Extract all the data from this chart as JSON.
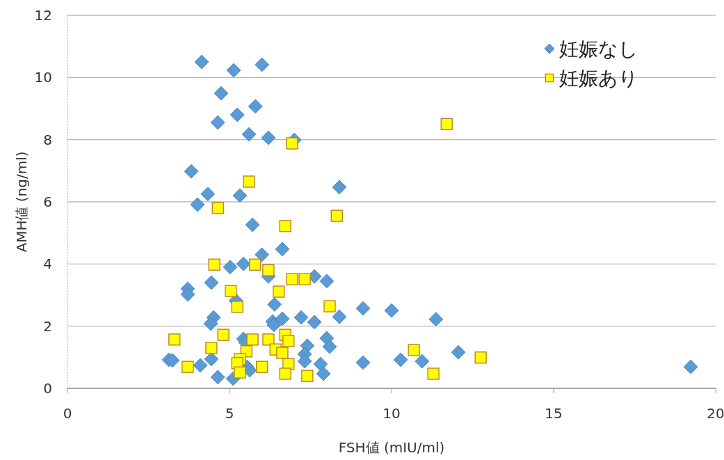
{
  "chart_data": {
    "type": "scatter",
    "xlabel": "FSH値 (mIU/ml)",
    "ylabel": "AMH値 (ng/ml)",
    "xlim": [
      0,
      20
    ],
    "ylim": [
      0,
      12
    ],
    "xticks": [
      0,
      5,
      10,
      15,
      20
    ],
    "yticks": [
      0,
      2,
      4,
      6,
      8,
      10,
      12
    ],
    "grid": "y",
    "legend": "top right",
    "series": [
      {
        "name": "妊娠なし",
        "color": "#5b9bd5",
        "marker": "diamond",
        "x": [
          4.14,
          5.13,
          6.0,
          4.74,
          5.8,
          5.24,
          4.64,
          5.6,
          6.2,
          7.0,
          3.82,
          4.33,
          5.32,
          4.01,
          8.39,
          5.71,
          6.0,
          6.63,
          5.43,
          5.02,
          6.2,
          7.62,
          8.0,
          3.71,
          3.71,
          4.44,
          5.2,
          6.39,
          9.12,
          10.0,
          4.51,
          4.42,
          6.33,
          6.37,
          6.63,
          7.21,
          7.62,
          8.39,
          11.37,
          5.43,
          5.49,
          8.0,
          8.09,
          7.4,
          7.32,
          7.32,
          7.81,
          7.9,
          3.13,
          3.24,
          4.1,
          4.44,
          4.64,
          5.11,
          5.54,
          5.62,
          9.12,
          10.28,
          10.94,
          12.06,
          19.23
        ],
        "values": [
          10.5,
          10.23,
          10.41,
          9.49,
          9.07,
          8.8,
          8.55,
          8.17,
          8.06,
          7.99,
          6.98,
          6.25,
          6.2,
          5.91,
          6.47,
          5.26,
          4.3,
          4.48,
          4.0,
          3.9,
          3.6,
          3.6,
          3.45,
          3.2,
          3.02,
          3.4,
          2.82,
          2.7,
          2.57,
          2.5,
          2.28,
          2.08,
          2.15,
          2.04,
          2.24,
          2.28,
          2.13,
          2.3,
          2.22,
          1.59,
          1.48,
          1.61,
          1.34,
          1.37,
          1.1,
          0.87,
          0.78,
          0.47,
          0.92,
          0.9,
          0.74,
          0.94,
          0.36,
          0.31,
          0.69,
          0.58,
          0.83,
          0.92,
          0.87,
          1.16,
          0.69
        ]
      },
      {
        "name": "妊娠あり",
        "color": "#ffff00",
        "marker": "square",
        "x": [
          11.7,
          6.93,
          8.31,
          5.6,
          4.64,
          6.72,
          4.53,
          5.79,
          6.2,
          6.93,
          7.32,
          5.04,
          6.52,
          5.24,
          8.09,
          3.3,
          4.81,
          5.71,
          6.2,
          6.72,
          6.82,
          4.44,
          5.52,
          6.42,
          6.63,
          10.69,
          12.75,
          5.32,
          5.24,
          5.32,
          6.0,
          6.82,
          3.71,
          6.72,
          7.4,
          11.29
        ],
        "values": [
          8.5,
          7.88,
          5.55,
          6.65,
          5.8,
          5.22,
          3.98,
          3.98,
          3.8,
          3.51,
          3.51,
          3.13,
          3.11,
          2.62,
          2.64,
          1.57,
          1.72,
          1.57,
          1.57,
          1.72,
          1.52,
          1.3,
          1.19,
          1.25,
          1.14,
          1.23,
          0.99,
          0.94,
          0.81,
          0.51,
          0.69,
          0.78,
          0.69,
          0.47,
          0.4,
          0.47
        ]
      }
    ]
  }
}
